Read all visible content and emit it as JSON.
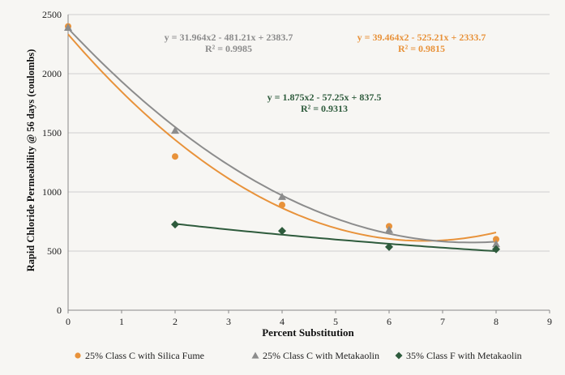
{
  "chart_data": {
    "type": "scatter",
    "title": "",
    "xlabel": "Percent Substitution",
    "ylabel": "Rapid Chloride Permeability @ 56 days (coulombs)",
    "xlim": [
      0,
      9
    ],
    "ylim": [
      0,
      2500
    ],
    "x_ticks": [
      "0",
      "1",
      "2",
      "3",
      "4",
      "5",
      "6",
      "7",
      "8",
      "9"
    ],
    "y_ticks": [
      "0",
      "500",
      "1000",
      "1500",
      "2000",
      "2500"
    ],
    "grid": "horizontal",
    "legend_position": "bottom",
    "series": [
      {
        "name": "25% Class C with Silica Fume",
        "color": "#e8923a",
        "marker": "circle",
        "x": [
          0,
          2,
          4,
          6,
          8
        ],
        "y": [
          2400,
          1300,
          890,
          710,
          600
        ],
        "trendline": {
          "type": "poly2",
          "a": 39.464,
          "b": -525.21,
          "c": 2333.7
        },
        "equation": "y = 39.464x2 - 525.21x + 2333.7",
        "r2": "R² = 0.9815"
      },
      {
        "name": "25% Class C with Metakaolin",
        "color": "#8c8c8c",
        "marker": "triangle",
        "x": [
          0,
          2,
          4,
          6,
          8
        ],
        "y": [
          2390,
          1520,
          960,
          680,
          560
        ],
        "trendline": {
          "type": "poly2",
          "a": 31.964,
          "b": -481.21,
          "c": 2383.7
        },
        "equation": "y = 31.964x2 - 481.21x + 2383.7",
        "r2": "R² = 0.9985"
      },
      {
        "name": "35% Class F with Metakaolin",
        "color": "#2e5b3c",
        "marker": "diamond",
        "x": [
          2,
          4,
          6,
          8
        ],
        "y": [
          725,
          670,
          535,
          515
        ],
        "trendline": {
          "type": "poly2",
          "a": 1.875,
          "b": -57.25,
          "c": 837.5
        },
        "equation": "y = 1.875x2 - 57.25x + 837.5",
        "r2": "R² = 0.9313"
      }
    ]
  }
}
